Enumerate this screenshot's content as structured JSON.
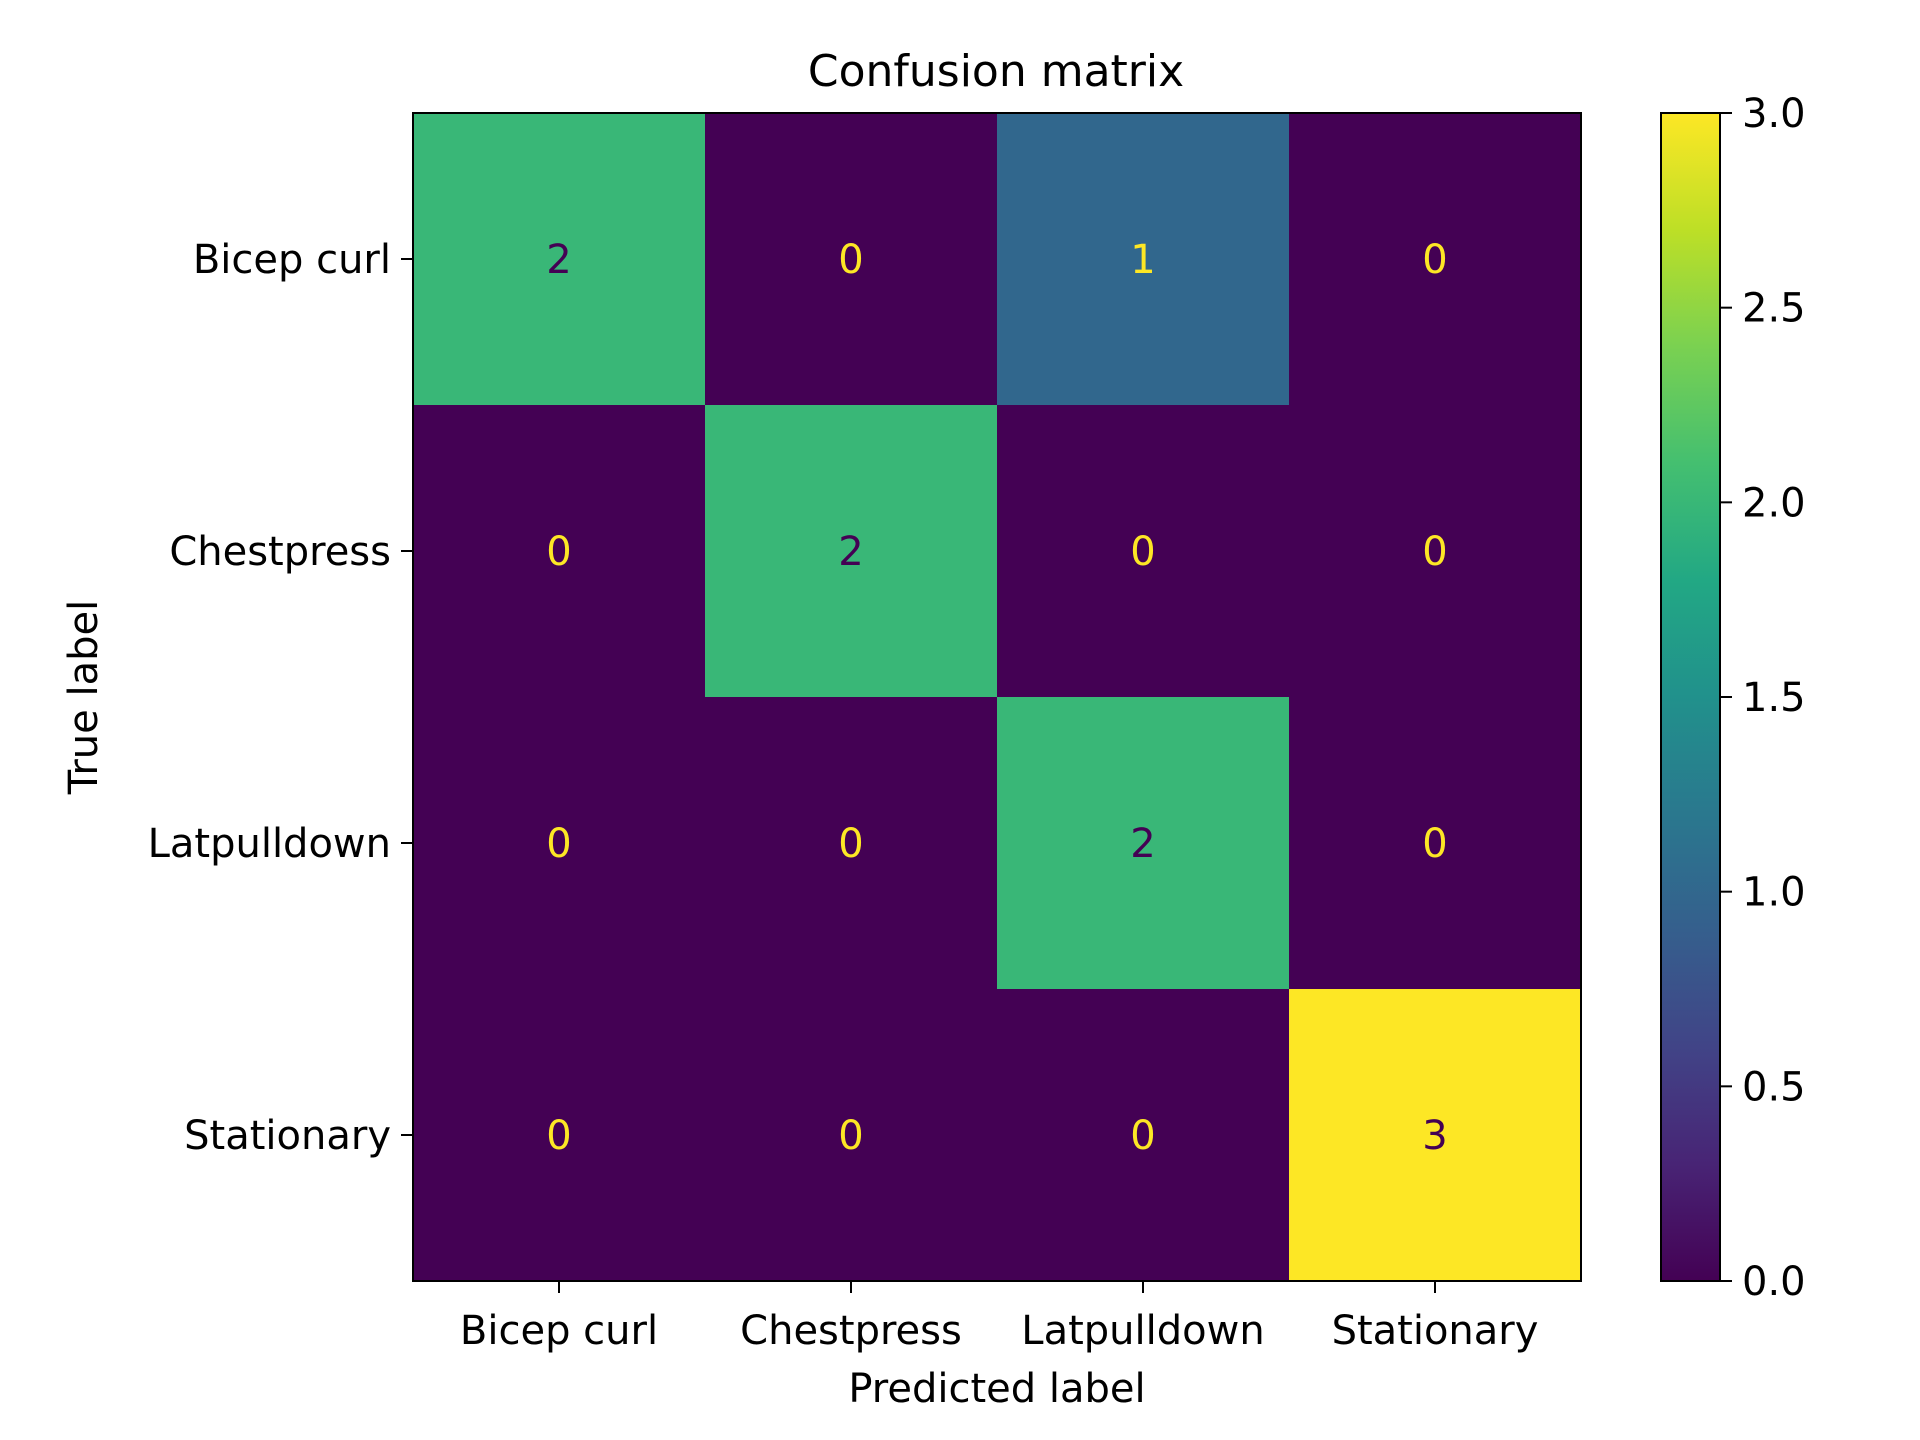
{
  "chart_data": {
    "type": "heatmap",
    "title": "Confusion matrix",
    "xlabel": "Predicted label",
    "ylabel": "True label",
    "x_categories": [
      "Bicep curl",
      "Chestpress",
      "Latpulldown",
      "Stationary"
    ],
    "y_categories": [
      "Bicep curl",
      "Chestpress",
      "Latpulldown",
      "Stationary"
    ],
    "matrix": [
      [
        2,
        0,
        1,
        0
      ],
      [
        0,
        2,
        0,
        0
      ],
      [
        0,
        0,
        2,
        0
      ],
      [
        0,
        0,
        0,
        3
      ]
    ],
    "colormap": "viridis",
    "colorbar": {
      "range": [
        0.0,
        3.0
      ],
      "ticks": [
        "0.0",
        "0.5",
        "1.0",
        "1.5",
        "2.0",
        "2.5",
        "3.0"
      ]
    },
    "colors": {
      "low": "#440154",
      "high": "#fde725",
      "text_on_dark": "#fde725",
      "text_on_light": "#440154"
    }
  }
}
